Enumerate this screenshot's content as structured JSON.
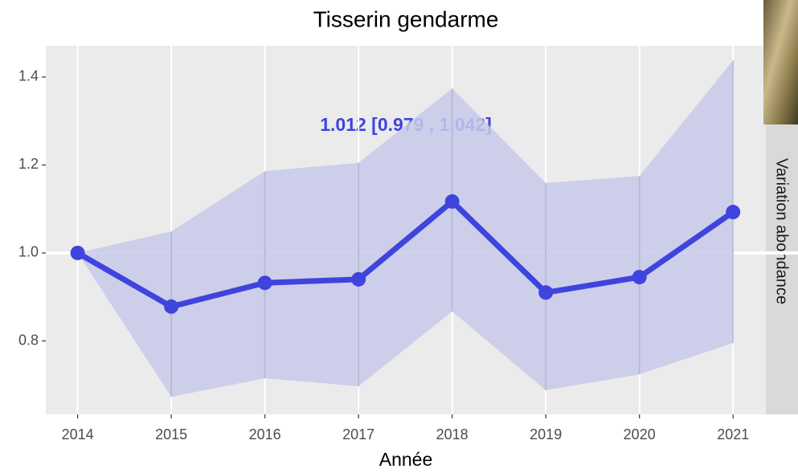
{
  "chart_data": {
    "type": "line",
    "title": "Tisserin gendarme",
    "x_label": "Année",
    "strip_label": "Variation abondance",
    "annotation": "1.012  [0.979 , 1.042]",
    "x": [
      2014,
      2015,
      2016,
      2017,
      2018,
      2019,
      2020,
      2021
    ],
    "values": [
      1.0,
      0.878,
      0.932,
      0.94,
      1.117,
      0.91,
      0.945,
      1.093
    ],
    "upper": [
      1.0,
      1.049,
      1.186,
      1.205,
      1.374,
      1.159,
      1.175,
      1.438
    ],
    "lower": [
      1.0,
      0.673,
      0.715,
      0.697,
      0.867,
      0.688,
      0.724,
      0.795
    ],
    "color": "#3f44dd",
    "band_color": "#c8caea",
    "reference_line": 1,
    "xlim": [
      2013.66,
      2021.35
    ],
    "ylim": [
      0.633,
      1.471
    ],
    "xticks": [
      2014,
      2015,
      2016,
      2017,
      2018,
      2019,
      2020,
      2021
    ],
    "yticks": [
      0.8,
      {
        "value": 1,
        "label": "1.0"
      },
      1.2,
      1.4
    ],
    "grid": true
  }
}
